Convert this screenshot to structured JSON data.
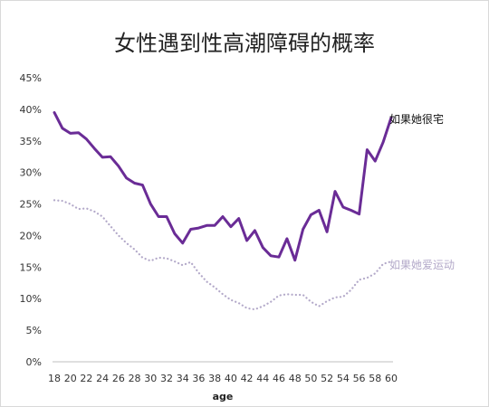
{
  "chart_data": {
    "type": "line",
    "title": "女性遇到性高潮障碍的概率",
    "xlabel": "age",
    "ylabel": "",
    "xlim": [
      18,
      60
    ],
    "ylim": [
      0,
      45
    ],
    "x_ticks": [
      18,
      20,
      22,
      24,
      26,
      28,
      30,
      32,
      34,
      36,
      38,
      40,
      42,
      44,
      46,
      48,
      50,
      52,
      54,
      56,
      58,
      60
    ],
    "y_ticks": [
      "0%",
      "5%",
      "10%",
      "15%",
      "20%",
      "25%",
      "30%",
      "35%",
      "40%",
      "45%"
    ],
    "grid": false,
    "legend": "direct labels at line ends",
    "series": [
      {
        "name": "如果她很宅",
        "color": "#6a2c96",
        "style": "solid",
        "x": [
          18,
          19,
          20,
          21,
          22,
          23,
          24,
          25,
          26,
          27,
          28,
          29,
          30,
          31,
          32,
          33,
          34,
          35,
          36,
          37,
          38,
          39,
          40,
          41,
          42,
          43,
          44,
          45,
          46,
          47,
          48,
          49,
          50,
          51,
          52,
          53,
          54,
          55,
          56,
          57,
          58,
          59,
          60
        ],
        "values": [
          39.5,
          37.0,
          36.2,
          36.3,
          35.3,
          33.8,
          32.4,
          32.5,
          31.0,
          29.1,
          28.3,
          28.0,
          25.0,
          23.0,
          23.0,
          20.3,
          18.8,
          21.0,
          21.2,
          21.6,
          21.6,
          23.0,
          21.4,
          22.7,
          19.2,
          20.8,
          18.1,
          16.8,
          16.6,
          19.5,
          16.1,
          21.0,
          23.3,
          24.0,
          20.6,
          27.0,
          24.5,
          24.0,
          23.4,
          33.6,
          31.8,
          34.8,
          38.7
        ]
      },
      {
        "name": "如果她爱运动",
        "color": "#b3a9c9",
        "style": "dotted",
        "x": [
          18,
          19,
          20,
          21,
          22,
          23,
          24,
          25,
          26,
          27,
          28,
          29,
          30,
          31,
          32,
          33,
          34,
          35,
          36,
          37,
          38,
          39,
          40,
          41,
          42,
          43,
          44,
          45,
          46,
          47,
          48,
          49,
          50,
          51,
          52,
          53,
          54,
          55,
          56,
          57,
          58,
          59,
          60
        ],
        "values": [
          25.6,
          25.5,
          25.0,
          24.2,
          24.3,
          23.8,
          23.0,
          21.5,
          20.0,
          18.8,
          17.8,
          16.5,
          16.0,
          16.5,
          16.4,
          15.9,
          15.3,
          15.8,
          14.1,
          12.7,
          11.8,
          10.7,
          9.8,
          9.3,
          8.5,
          8.3,
          8.8,
          9.5,
          10.5,
          10.7,
          10.6,
          10.6,
          9.5,
          8.8,
          9.6,
          10.2,
          10.3,
          11.4,
          13.0,
          13.3,
          14.0,
          15.5,
          15.9
        ]
      }
    ]
  }
}
